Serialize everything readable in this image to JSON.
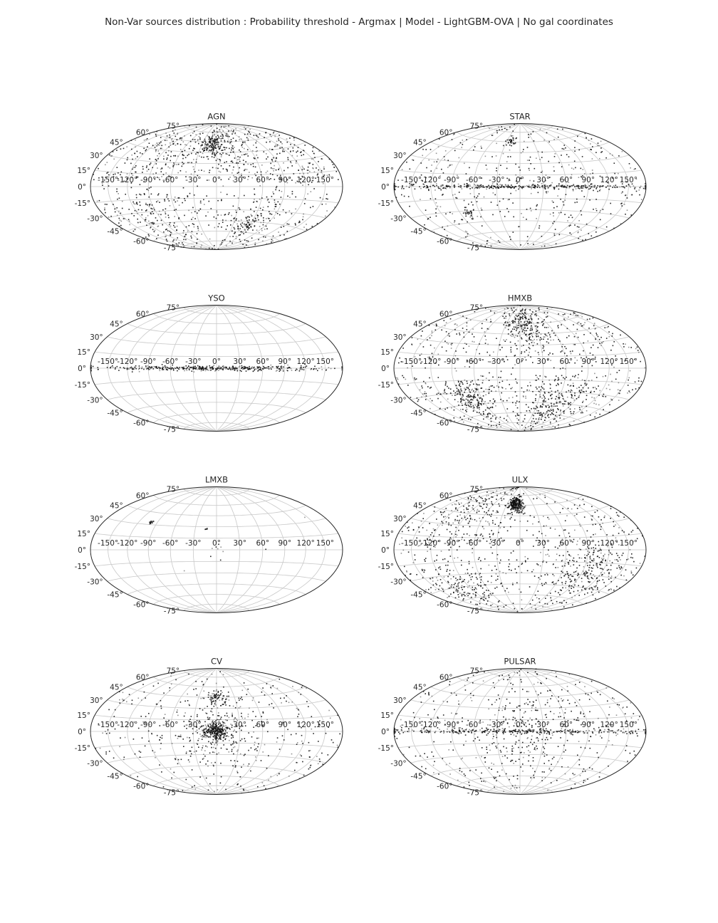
{
  "figure": {
    "title": "Non-Var sources distribution : Probability threshold - Argmax | Model - LightGBM-OVA | No gal coordinates"
  },
  "axes_ticks": {
    "longitude_labels": [
      "-150°",
      "-120°",
      "-90°",
      "-60°",
      "-30°",
      "0°",
      "30°",
      "60°",
      "90°",
      "120°",
      "150°"
    ],
    "latitude_labels": [
      "-75°",
      "-60°",
      "-45°",
      "-30°",
      "-15°",
      "0°",
      "15°",
      "30°",
      "45°",
      "60°",
      "75°"
    ]
  },
  "colors": {
    "points": "#111111",
    "grid": "#c8c8c8",
    "frame": "#262626",
    "text": "#262626"
  },
  "chart_data": [
    {
      "type": "scatter",
      "projection": "hammer",
      "title": "AGN",
      "grid": true,
      "xlim": [
        -180,
        180
      ],
      "ylim": [
        -90,
        90
      ],
      "density": "high",
      "clusters": [
        {
          "lon": -10,
          "lat": 55,
          "spread": 12,
          "weight": 3
        },
        {
          "lon": 25,
          "lat": 50,
          "spread": 25,
          "weight": 2
        },
        {
          "lon": 60,
          "lat": -45,
          "spread": 15,
          "weight": 2
        },
        {
          "lon": -90,
          "lat": 40,
          "spread": 30,
          "weight": 2
        },
        {
          "lon": 120,
          "lat": 30,
          "spread": 30,
          "weight": 2
        },
        {
          "lon": -100,
          "lat": -35,
          "spread": 30,
          "weight": 2
        }
      ],
      "background": 0.55,
      "avoid_plane": true
    },
    {
      "type": "scatter",
      "projection": "hammer",
      "title": "STAR",
      "grid": true,
      "xlim": [
        -180,
        180
      ],
      "ylim": [
        -90,
        90
      ],
      "density": "medium",
      "clusters": [
        {
          "lon": 0,
          "lat": 0,
          "spread": 60,
          "weight": 4,
          "flat": true
        },
        {
          "lon": -75,
          "lat": -33,
          "spread": 5,
          "weight": 0.4
        },
        {
          "lon": -20,
          "lat": 60,
          "spread": 6,
          "weight": 0.3
        }
      ],
      "background": 0.5,
      "avoid_plane": false
    },
    {
      "type": "scatter",
      "projection": "hammer",
      "title": "YSO",
      "grid": true,
      "xlim": [
        -180,
        180
      ],
      "ylim": [
        -90,
        90
      ],
      "density": "low",
      "clusters": [
        {
          "lon": 0,
          "lat": 0,
          "spread": 50,
          "weight": 5,
          "flat": true
        }
      ],
      "background": 0.0,
      "avoid_plane": false
    },
    {
      "type": "scatter",
      "projection": "hammer",
      "title": "HMXB",
      "grid": true,
      "xlim": [
        -180,
        180
      ],
      "ylim": [
        -90,
        90
      ],
      "density": "high",
      "clusters": [
        {
          "lon": 10,
          "lat": 55,
          "spread": 20,
          "weight": 2
        },
        {
          "lon": 60,
          "lat": -45,
          "spread": 20,
          "weight": 1.5
        },
        {
          "lon": -80,
          "lat": -35,
          "spread": 15,
          "weight": 1.5
        }
      ],
      "background": 0.6,
      "avoid_plane": true
    },
    {
      "type": "scatter",
      "projection": "hammer",
      "title": "LMXB",
      "grid": true,
      "xlim": [
        -180,
        180
      ],
      "ylim": [
        -90,
        90
      ],
      "density": "sparse",
      "clusters": [
        {
          "lon": -100,
          "lat": 33,
          "spread": 2,
          "weight": 1
        },
        {
          "lon": -15,
          "lat": 27,
          "spread": 1,
          "weight": 0.3
        },
        {
          "lon": 0,
          "lat": 0,
          "spread": 10,
          "weight": 0.5
        }
      ],
      "background": 0.1,
      "avoid_plane": false
    },
    {
      "type": "scatter",
      "projection": "hammer",
      "title": "ULX",
      "grid": true,
      "xlim": [
        -180,
        180
      ],
      "ylim": [
        -90,
        90
      ],
      "density": "high",
      "clusters": [
        {
          "lon": -10,
          "lat": 62,
          "spread": 8,
          "weight": 2
        },
        {
          "lon": 100,
          "lat": -20,
          "spread": 30,
          "weight": 2
        },
        {
          "lon": -90,
          "lat": 40,
          "spread": 35,
          "weight": 1.5
        },
        {
          "lon": -100,
          "lat": -45,
          "spread": 20,
          "weight": 1
        }
      ],
      "background": 0.4,
      "avoid_plane": true
    },
    {
      "type": "scatter",
      "projection": "hammer",
      "title": "CV",
      "grid": true,
      "xlim": [
        -180,
        180
      ],
      "ylim": [
        -90,
        90
      ],
      "density": "medium",
      "clusters": [
        {
          "lon": 0,
          "lat": 0,
          "spread": 8,
          "weight": 3
        },
        {
          "lon": 0,
          "lat": 0,
          "spread": 30,
          "weight": 3
        },
        {
          "lon": 0,
          "lat": 45,
          "spread": 8,
          "weight": 0.8
        }
      ],
      "background": 0.35,
      "avoid_plane": false
    },
    {
      "type": "scatter",
      "projection": "hammer",
      "title": "PULSAR",
      "grid": true,
      "xlim": [
        -180,
        180
      ],
      "ylim": [
        -90,
        90
      ],
      "density": "medium",
      "clusters": [
        {
          "lon": 0,
          "lat": 0,
          "spread": 60,
          "weight": 4,
          "flat": true
        },
        {
          "lon": 0,
          "lat": 0,
          "spread": 40,
          "weight": 3
        }
      ],
      "background": 0.4,
      "avoid_plane": false
    }
  ]
}
